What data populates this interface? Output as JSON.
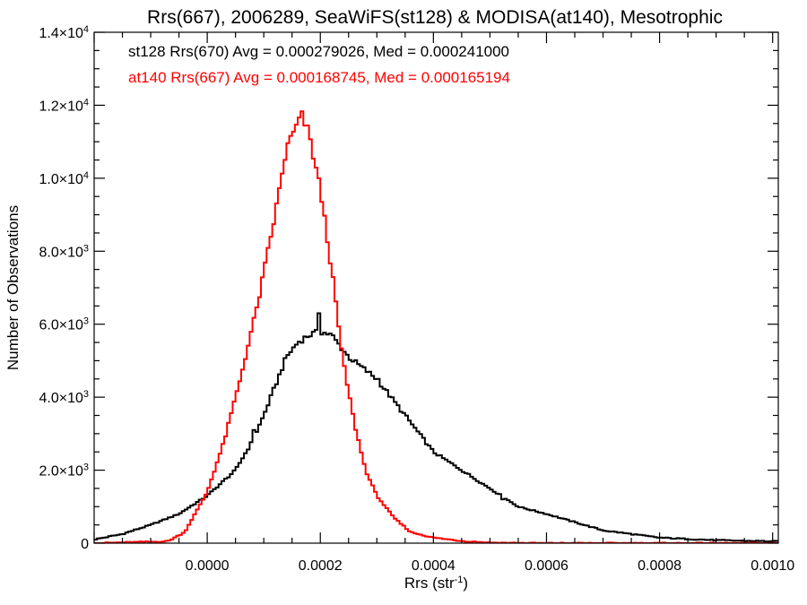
{
  "chart_data": {
    "type": "line",
    "title": "Rrs(667), 2006289, SeaWiFS(st128) & MODISA(at140), Mesotrophic",
    "xlabel": {
      "base": "Rrs (str",
      "sup": "-1",
      "suffix": ")"
    },
    "ylabel": "Number of Observations",
    "xlim": [
      -0.0002,
      0.00101
    ],
    "ylim": [
      0,
      14000
    ],
    "x_ticks": [
      {
        "value": 0.0,
        "label": "0.0000"
      },
      {
        "value": 0.0002,
        "label": "0.0002"
      },
      {
        "value": 0.0004,
        "label": "0.0004"
      },
      {
        "value": 0.0006,
        "label": "0.0006"
      },
      {
        "value": 0.0008,
        "label": "0.0008"
      },
      {
        "value": 0.001,
        "label": "0.0010"
      }
    ],
    "y_ticks": [
      {
        "value": 0,
        "mant": "0",
        "exp": ""
      },
      {
        "value": 2000,
        "mant": "2.0×10",
        "exp": "3"
      },
      {
        "value": 4000,
        "mant": "4.0×10",
        "exp": "3"
      },
      {
        "value": 6000,
        "mant": "6.0×10",
        "exp": "3"
      },
      {
        "value": 8000,
        "mant": "8.0×10",
        "exp": "3"
      },
      {
        "value": 10000,
        "mant": "1.0×10",
        "exp": "4"
      },
      {
        "value": 12000,
        "mant": "1.2×10",
        "exp": "4"
      },
      {
        "value": 14000,
        "mant": "1.4×10",
        "exp": "4"
      }
    ],
    "legend": [
      {
        "text": "st128 Rrs(670) Avg = 0.000279026, Med = 0.000241000",
        "color": "#000000"
      },
      {
        "text": "at140 Rrs(667) Avg = 0.000168745, Med = 0.000165194",
        "color": "#ff0000"
      }
    ],
    "legend_placement": "top-left",
    "grid": false,
    "series": [
      {
        "color": "#000000",
        "x": [
          -0.0002,
          -0.00015,
          -0.0001,
          -5e-05,
          0.0,
          5e-05,
          8e-05,
          0.0001,
          0.00012,
          0.00014,
          0.00016,
          0.00018,
          0.0002,
          0.00022,
          0.00025,
          0.0003,
          0.00035,
          0.0004,
          0.00045,
          0.0005,
          0.00055,
          0.0006,
          0.0007,
          0.0008,
          0.0009,
          0.001
        ],
        "y": [
          100,
          250,
          500,
          800,
          1300,
          2000,
          2800,
          3500,
          4300,
          5100,
          5500,
          5700,
          5800,
          5700,
          5100,
          4500,
          3500,
          2500,
          2000,
          1500,
          1000,
          800,
          350,
          150,
          80,
          50
        ],
        "spikes": [
          {
            "x": 8.5e-05,
            "y": 3100
          },
          {
            "x": 0.000197,
            "y": 6300
          },
          {
            "x": 0.000302,
            "y": 4500
          },
          {
            "x": 0.000525,
            "y": 1200
          }
        ]
      },
      {
        "color": "#ff0000",
        "x": [
          -0.0002,
          -7e-05,
          -4e-05,
          0.0,
          3e-05,
          6e-05,
          9e-05,
          0.00012,
          0.00014,
          0.00016,
          0.000168,
          0.00018,
          0.0002,
          0.00022,
          0.00024,
          0.00026,
          0.00028,
          0.0003,
          0.00033,
          0.00036,
          0.0004,
          0.00045,
          0.0005,
          0.00055,
          0.0006,
          0.001
        ],
        "y": [
          0,
          50,
          300,
          1400,
          2800,
          4600,
          6600,
          9000,
          10800,
          11500,
          11700,
          11200,
          9700,
          7500,
          5000,
          3300,
          2000,
          1300,
          700,
          300,
          150,
          60,
          15,
          5,
          0,
          0
        ]
      }
    ]
  }
}
